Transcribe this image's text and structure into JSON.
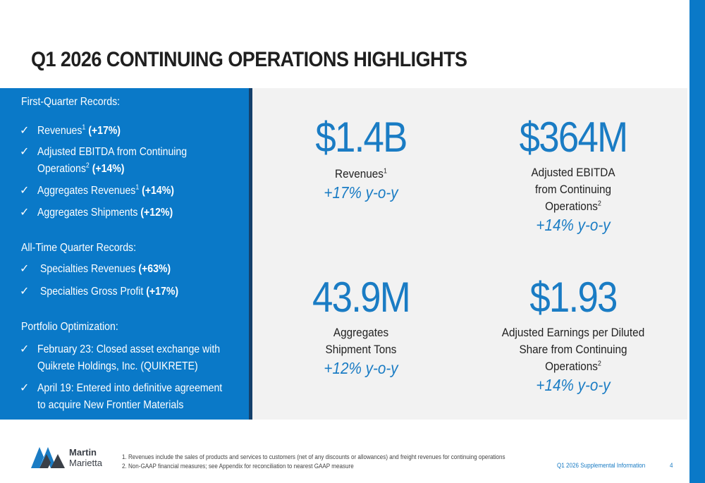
{
  "title": "Q1 2026 CONTINUING OPERATIONS HIGHLIGHTS",
  "left": {
    "check": "✓",
    "h1": "First-Quarter Records:",
    "q1": [
      {
        "text": "Revenues",
        "sup": "1",
        "bold": "(+17%)"
      },
      {
        "text": "Adjusted EBITDA from Continuing",
        "text2": "Operations",
        "sup": "2",
        "bold": "(+14%)"
      },
      {
        "text": "Aggregates Revenues",
        "sup": "1",
        "bold": "(+14%)"
      },
      {
        "text": "Aggregates Shipments",
        "bold": "(+12%)"
      }
    ],
    "h2": "All-Time Quarter Records:",
    "at": [
      {
        "text": "Specialties Revenues",
        "bold": "(+63%)"
      },
      {
        "text": "Specialties Gross Profit",
        "bold": "(+17%)"
      }
    ],
    "h3": "Portfolio Optimization:",
    "po": [
      {
        "line1": "February 23: Closed asset exchange with",
        "line2": "Quikrete Holdings, Inc. (QUIKRETE)"
      },
      {
        "line1": "April 19: Entered into definitive agreement",
        "line2": "to acquire New Frontier Materials"
      }
    ]
  },
  "stats": [
    {
      "value": "$1.4B",
      "label1": "Revenues",
      "sup": "1",
      "yoy": "+17% y-o-y"
    },
    {
      "value": "$364M",
      "label1": "Adjusted EBITDA",
      "label2": "from Continuing",
      "label3": "Operations",
      "sup": "2",
      "yoy": "+14% y-o-y"
    },
    {
      "value": "43.9M",
      "label1": "Aggregates",
      "label2": "Shipment Tons",
      "yoy": "+12% y-o-y"
    },
    {
      "value": "$1.93",
      "label1": "Adjusted Earnings per Diluted",
      "label2": "Share from Continuing",
      "label3": "Operations",
      "sup": "2",
      "yoy": "+14% y-o-y"
    }
  ],
  "footer": {
    "logo": "Martin Marietta",
    "note1": "1. Revenues include the sales of products and services to customers (net of any discounts or allowances) and freight revenues for continuing operations",
    "note2": "2. Non-GAAP financial measures; see Appendix for reconciliation to nearest GAAP measure",
    "doc": "Q1 2026 Supplemental Information",
    "page": "4"
  },
  "colors": {
    "brand_blue": "#0a79c8",
    "dark_border": "#14406b",
    "panel_gray": "#f2f2f2"
  }
}
